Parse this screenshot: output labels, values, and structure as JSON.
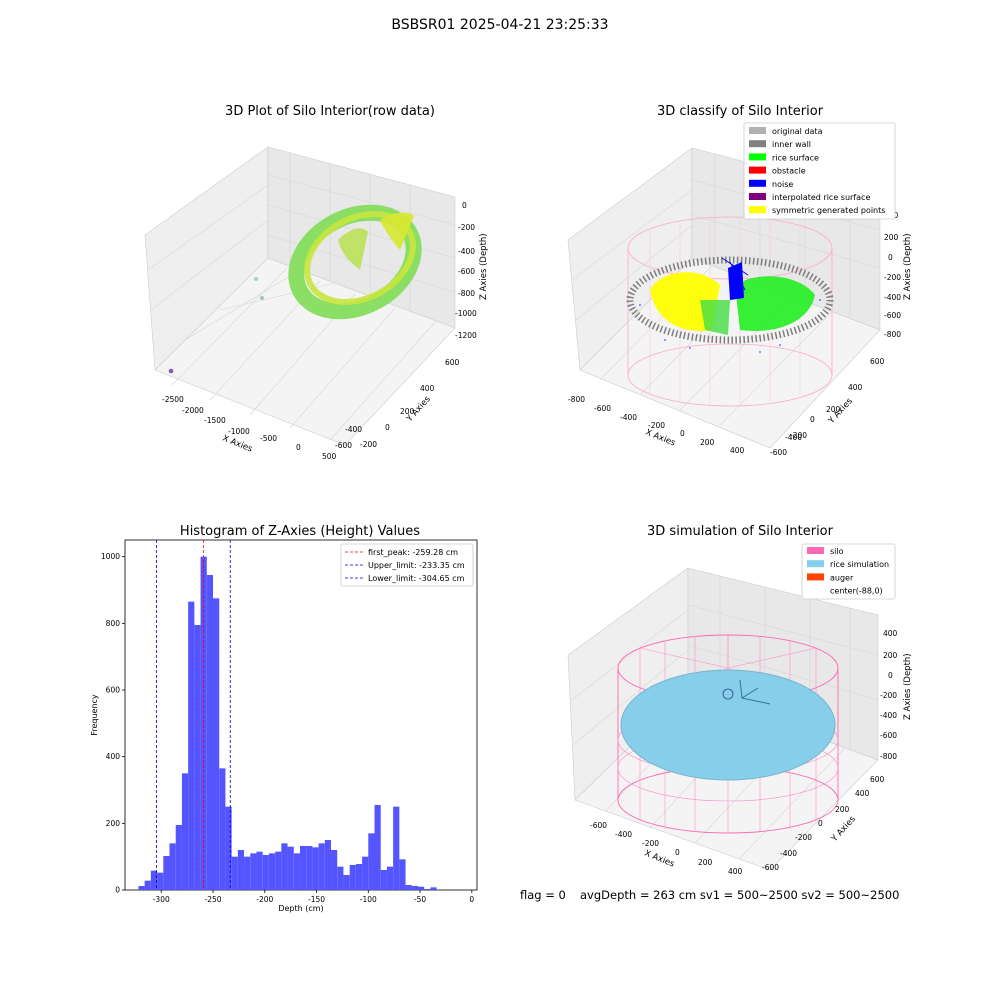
{
  "suptitle": "BSBSR01 2025-04-21 23:25:33",
  "colors": {
    "hist_bar": "#5555ff",
    "peak_line": "#ff0000",
    "limit_line": "#0000cc",
    "silo": "#ff69b4",
    "rice": "#87ceeb",
    "auger": "#ff4500"
  },
  "panel1": {
    "title": "3D Plot of Silo Interior(row data)",
    "xlabel": "X Axies",
    "ylabel": "Y Axies",
    "zlabel": "Z Axies (Depth)",
    "xticks": [
      "-2500",
      "-2000",
      "-1500",
      "-1000",
      "-500",
      "0",
      "500"
    ],
    "yticks": [
      "600",
      "400",
      "200",
      "0",
      "-200",
      "-400",
      "-600"
    ],
    "zticks": [
      "0",
      "-200",
      "-400",
      "-600",
      "-800",
      "-1000",
      "-1200"
    ]
  },
  "panel2": {
    "title": "3D classify of Silo Interior",
    "xlabel": "X Axies",
    "ylabel": "Y Axies",
    "zlabel": "Z Axies (Depth)",
    "xticks": [
      "-800",
      "-600",
      "-400",
      "-200",
      "0",
      "200",
      "400"
    ],
    "yticks": [
      "600",
      "400",
      "200",
      "0",
      "-200",
      "-400",
      "-600"
    ],
    "zticks": [
      "400",
      "200",
      "0",
      "-200",
      "-400",
      "-600",
      "-800"
    ],
    "legend": [
      {
        "label": "original data",
        "color": "#b0b0b0"
      },
      {
        "label": "inner wall",
        "color": "#808080"
      },
      {
        "label": "rice surface",
        "color": "#00ff00"
      },
      {
        "label": "obstacle",
        "color": "#ff0000"
      },
      {
        "label": "noise",
        "color": "#0000ff"
      },
      {
        "label": "interpolated rice surface",
        "color": "#800080"
      },
      {
        "label": "symmetric generated points",
        "color": "#ffff00"
      }
    ]
  },
  "panel3": {
    "title": "Histogram of Z-Axies (Height) Values",
    "xlabel": "Depth (cm)",
    "ylabel": "Frequency",
    "legend": [
      {
        "label": "first_peak: -259.28 cm",
        "color": "#ff0000"
      },
      {
        "label": "Upper_limit: -233.35 cm",
        "color": "#0000cc"
      },
      {
        "label": "Lower_limit: -304.65 cm",
        "color": "#0000cc"
      }
    ]
  },
  "panel4": {
    "title": "3D simulation of Silo Interior",
    "xlabel": "X Axies",
    "ylabel": "Y Axies",
    "zlabel": "Z Axies (Depth)",
    "xticks": [
      "-600",
      "-400",
      "-200",
      "0",
      "200",
      "400"
    ],
    "yticks": [
      "600",
      "400",
      "200",
      "0",
      "-200",
      "-400",
      "-600"
    ],
    "zticks": [
      "400",
      "200",
      "0",
      "-200",
      "-400",
      "-600",
      "-800"
    ],
    "legend": [
      {
        "label": "silo",
        "color": "#ff69b4"
      },
      {
        "label": "rice simulation",
        "color": "#87ceeb"
      },
      {
        "label": "auger",
        "color": "#ff4500"
      },
      {
        "label": "center(-88,0)",
        "color": ""
      }
    ]
  },
  "footer": {
    "flag": "flag = 0",
    "avg": "avgDepth = 263 cm  sv1 = 500~2500  sv2 = 500~2500"
  },
  "chart_data": [
    {
      "type": "histogram",
      "title": "Histogram of Z-Axies (Height) Values",
      "xlabel": "Depth (cm)",
      "ylabel": "Frequency",
      "xlim": [
        -335,
        5
      ],
      "ylim": [
        0,
        1050
      ],
      "xticks": [
        -300,
        -250,
        -200,
        -150,
        -100,
        -50,
        0
      ],
      "yticks": [
        0,
        200,
        400,
        600,
        800,
        1000
      ],
      "bin_width": 6,
      "bin_start": -322,
      "values": [
        12,
        28,
        58,
        52,
        102,
        140,
        195,
        350,
        865,
        795,
        1000,
        945,
        875,
        365,
        250,
        100,
        120,
        100,
        110,
        115,
        105,
        110,
        115,
        140,
        130,
        110,
        132,
        132,
        128,
        140,
        150,
        120,
        70,
        45,
        75,
        78,
        100,
        170,
        255,
        60,
        70,
        250,
        92,
        15,
        12,
        10,
        3,
        8
      ],
      "lines": [
        {
          "name": "first_peak",
          "x": -259.28,
          "color": "#ff0000"
        },
        {
          "name": "Upper_limit",
          "x": -233.35,
          "color": "#0000cc"
        },
        {
          "name": "Lower_limit",
          "x": -304.65,
          "color": "#0000cc"
        }
      ],
      "legend_position": "top-right"
    }
  ]
}
